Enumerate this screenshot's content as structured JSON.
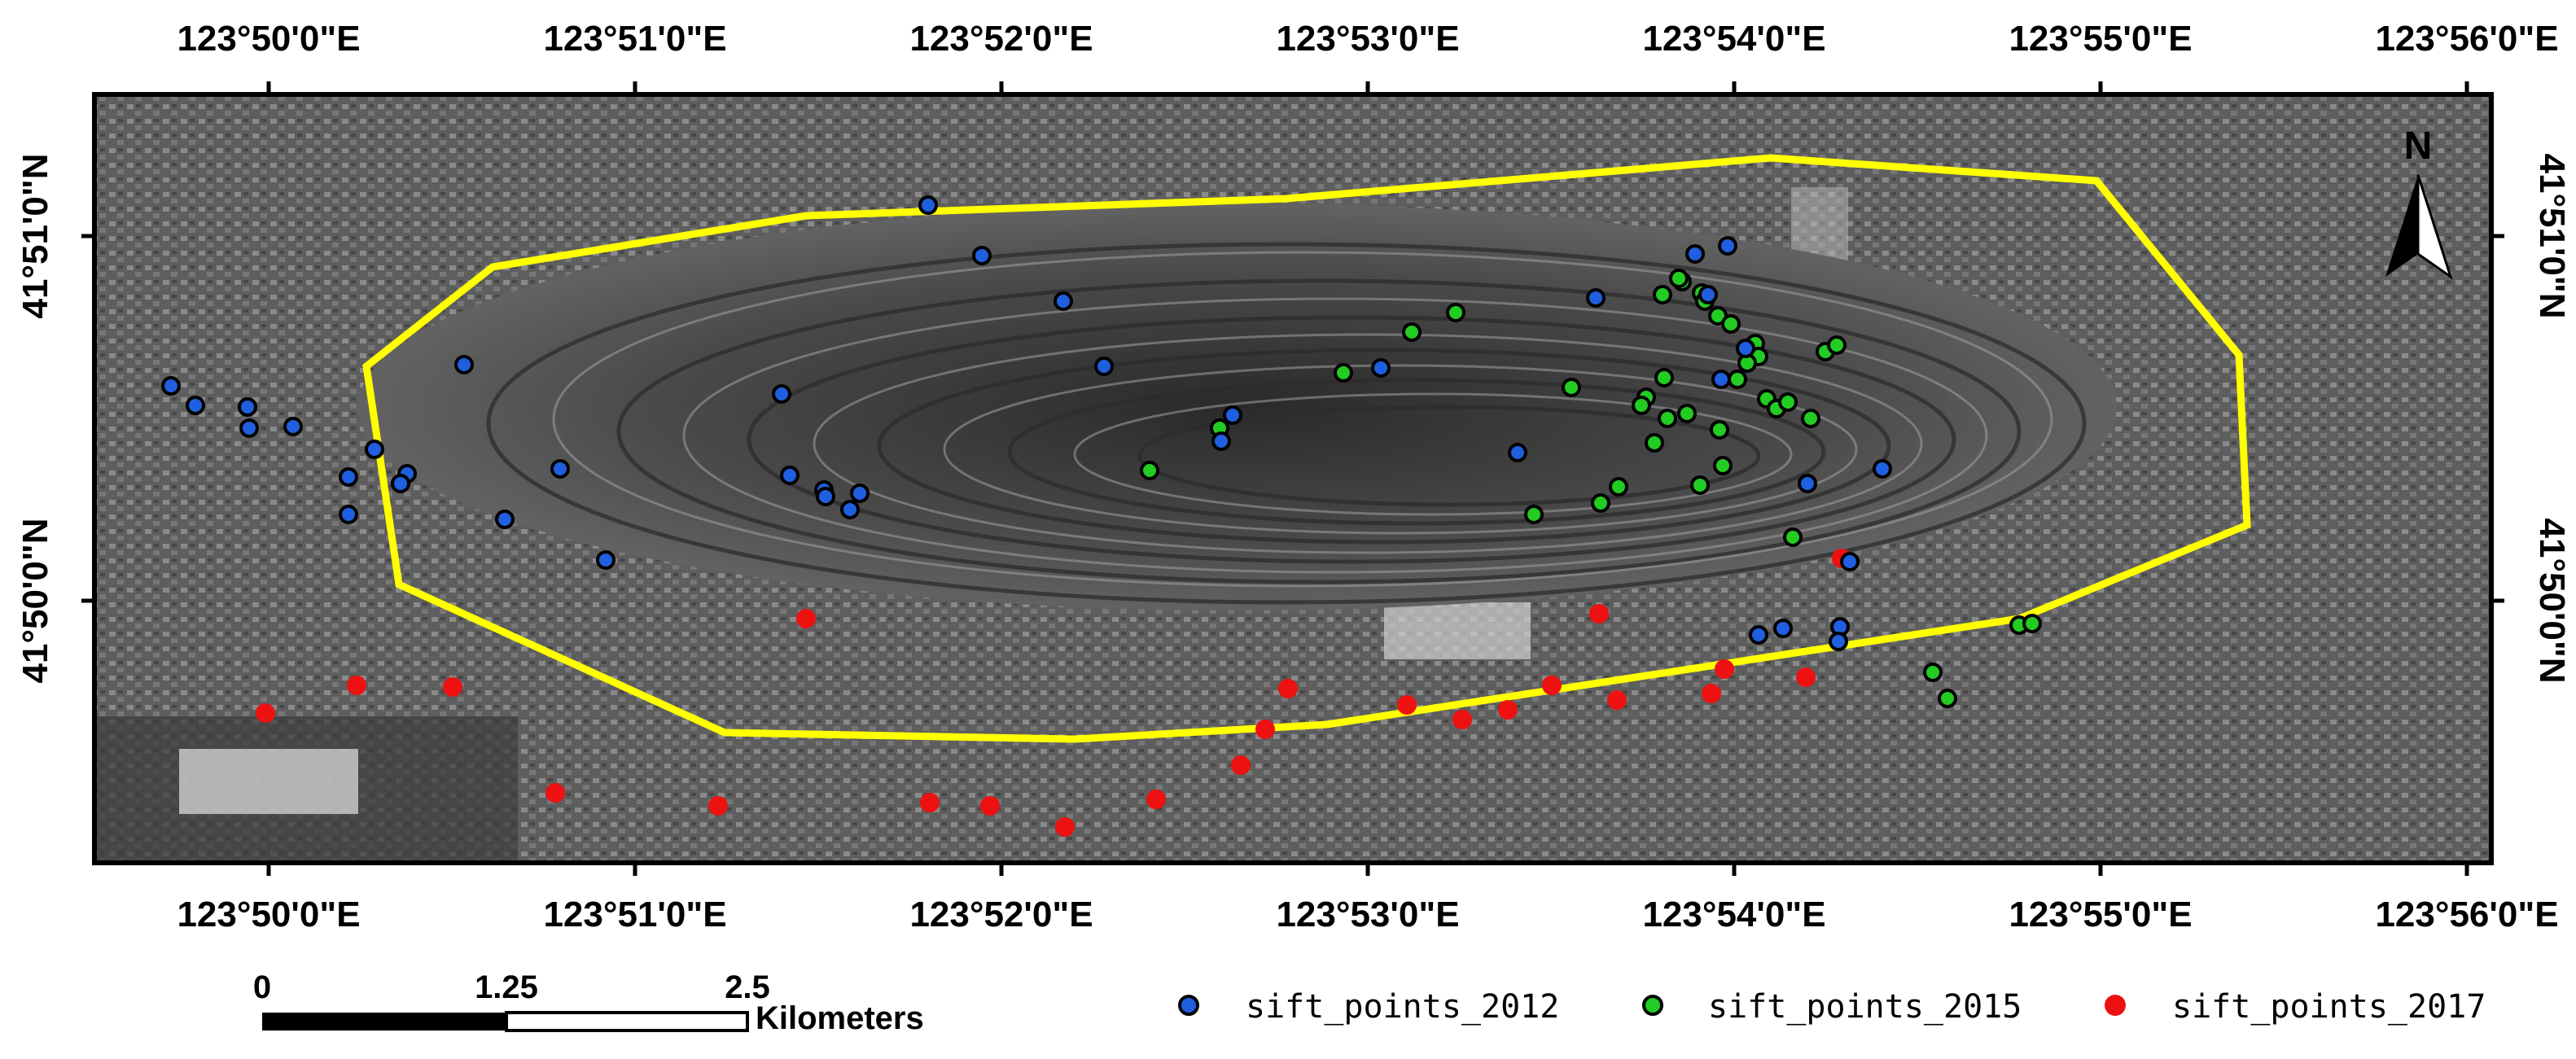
{
  "map": {
    "top_labels": [
      "123°50'0\"E",
      "123°51'0\"E",
      "123°52'0\"E",
      "123°53'0\"E",
      "123°54'0\"E",
      "123°55'0\"E",
      "123°56'0\"E"
    ],
    "bottom_labels": [
      "123°50'0\"E",
      "123°51'0\"E",
      "123°52'0\"E",
      "123°53'0\"E",
      "123°54'0\"E",
      "123°55'0\"E",
      "123°56'0\"E"
    ],
    "left_labels": [
      "41°51'0\"N",
      "41°50'0\"N"
    ],
    "right_labels": [
      "41°51'0\"N",
      "41°50'0\"N"
    ],
    "north_label": "N",
    "boundary_color": "#ffff00"
  },
  "scale": {
    "labels": [
      "0",
      "1.25",
      "2.5"
    ],
    "unit": "Kilometers"
  },
  "legend": [
    {
      "name": "sift_points_2012",
      "color": "#1f5fe0"
    },
    {
      "name": "sift_points_2015",
      "color": "#22cc22"
    },
    {
      "name": "sift_points_2017",
      "color": "#ee1111"
    }
  ],
  "points": {
    "p2012": [
      [
        1136,
        345
      ],
      [
        1130,
        385
      ],
      [
        1129,
        394
      ],
      [
        1095,
        386
      ],
      [
        1080,
        390
      ],
      [
        1110,
        297
      ],
      [
        1156,
        288
      ],
      [
        1057,
        233
      ],
      [
        1072,
        214
      ],
      [
        1049,
        181
      ],
      [
        1061,
        151
      ],
      [
        1041,
        156
      ],
      [
        980,
        183
      ],
      [
        932,
        278
      ],
      [
        848,
        226
      ],
      [
        757,
        255
      ],
      [
        750,
        271
      ],
      [
        678,
        225
      ],
      [
        653,
        185
      ],
      [
        603,
        157
      ],
      [
        570,
        126
      ],
      [
        528,
        303
      ],
      [
        522,
        313
      ],
      [
        506,
        301
      ],
      [
        507,
        305
      ],
      [
        485,
        292
      ],
      [
        480,
        242
      ],
      [
        372,
        344
      ],
      [
        344,
        288
      ],
      [
        310,
        319
      ],
      [
        285,
        224
      ],
      [
        250,
        291
      ],
      [
        246,
        297
      ],
      [
        230,
        276
      ],
      [
        214,
        316
      ],
      [
        214,
        293
      ],
      [
        180,
        262
      ],
      [
        153,
        263
      ],
      [
        152,
        250
      ],
      [
        120,
        249
      ],
      [
        105,
        237
      ]
    ],
    "p2015": [
      [
        1187,
        413
      ],
      [
        1196,
        429
      ],
      [
        1240,
        384
      ],
      [
        1248,
        383
      ],
      [
        1101,
        330
      ],
      [
        1044,
        298
      ],
      [
        1058,
        286
      ],
      [
        1022,
        232
      ],
      [
        1011,
        244
      ],
      [
        1008,
        249
      ],
      [
        983,
        309
      ],
      [
        994,
        299
      ],
      [
        942,
        316
      ],
      [
        1021,
        181
      ],
      [
        1033,
        173
      ],
      [
        1045,
        180
      ],
      [
        1031,
        171
      ],
      [
        1047,
        185
      ],
      [
        1055,
        194
      ],
      [
        1063,
        199
      ],
      [
        1078,
        211
      ],
      [
        1080,
        219
      ],
      [
        1121,
        216
      ],
      [
        1128,
        212
      ],
      [
        1073,
        223
      ],
      [
        1067,
        233
      ],
      [
        1085,
        245
      ],
      [
        1091,
        251
      ],
      [
        1098,
        247
      ],
      [
        1112,
        257
      ],
      [
        1056,
        264
      ],
      [
        1036,
        254
      ],
      [
        1024,
        257
      ],
      [
        1016,
        272
      ],
      [
        965,
        238
      ],
      [
        894,
        192
      ],
      [
        867,
        204
      ],
      [
        825,
        229
      ],
      [
        749,
        263
      ],
      [
        706,
        289
      ]
    ],
    "p2017": [
      [
        1131,
        343
      ],
      [
        1109,
        416
      ],
      [
        1059,
        411
      ],
      [
        1051,
        426
      ],
      [
        993,
        430
      ],
      [
        982,
        377
      ],
      [
        953,
        421
      ],
      [
        926,
        436
      ],
      [
        898,
        442
      ],
      [
        864,
        433
      ],
      [
        791,
        423
      ],
      [
        777,
        448
      ],
      [
        762,
        470
      ],
      [
        710,
        491
      ],
      [
        654,
        508
      ],
      [
        608,
        495
      ],
      [
        571,
        493
      ],
      [
        495,
        380
      ],
      [
        441,
        495
      ],
      [
        341,
        487
      ],
      [
        278,
        422
      ],
      [
        219,
        421
      ],
      [
        163,
        438
      ]
    ]
  }
}
